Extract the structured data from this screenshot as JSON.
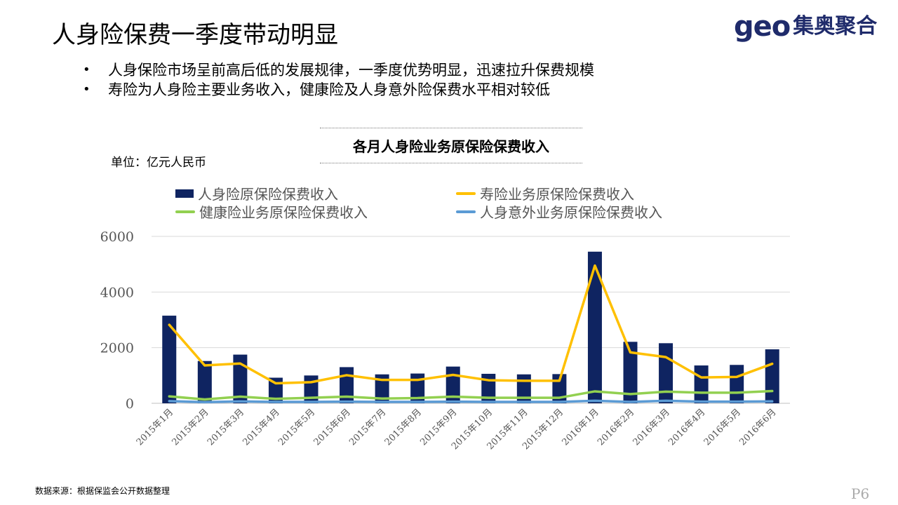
{
  "header": {
    "title": "人身险保费一季度带动明显",
    "logo_mark": "geo",
    "logo_text": "集奥聚合"
  },
  "bullets": [
    "人身保险市场呈前高后低的发展规律，一季度优势明显，迅速拉升保费规模",
    "寿险为人身险主要业务收入，健康险及人身意外险保费水平相对较低"
  ],
  "unit_label": "单位：亿元人民币",
  "footer": {
    "source": "数据来源：根据保监会公开数据整理",
    "page": "P6"
  },
  "chart_data": {
    "type": "bar",
    "title": "各月人身险业务原保险保费收入",
    "categories": [
      "2015年1月",
      "2015年2月",
      "2015年3月",
      "2015年4月",
      "2015年5月",
      "2015年6月",
      "2015年7月",
      "2015年8月",
      "2015年9月",
      "2015年10月",
      "2015年11月",
      "2015年12月",
      "2016年1月",
      "2016年2月",
      "2016年3月",
      "2016年4月",
      "2016年5月",
      "2016年6月"
    ],
    "ylim": [
      0,
      6000
    ],
    "yticks": [
      0,
      2000,
      4000,
      6000
    ],
    "grid": true,
    "legend_position": "top",
    "series": [
      {
        "name": "人身险原保险保费收入",
        "kind": "bar",
        "color": "#0f2461",
        "values": [
          3150,
          1520,
          1750,
          920,
          1000,
          1300,
          1040,
          1070,
          1320,
          1060,
          1040,
          1050,
          5450,
          2210,
          2160,
          1360,
          1380,
          1940
        ]
      },
      {
        "name": "寿险业务原保险保费收入",
        "kind": "line",
        "color": "#ffc000",
        "values": [
          2820,
          1360,
          1430,
          720,
          760,
          1010,
          840,
          840,
          1020,
          830,
          810,
          810,
          4950,
          1830,
          1660,
          930,
          950,
          1420
        ]
      },
      {
        "name": "健康险业务原保险保费收入",
        "kind": "line",
        "color": "#92d050",
        "values": [
          250,
          140,
          240,
          160,
          200,
          240,
          170,
          190,
          240,
          200,
          200,
          200,
          430,
          330,
          420,
          380,
          380,
          440
        ]
      },
      {
        "name": "人身意外业务原保险保费收入",
        "kind": "line",
        "color": "#5b9bd5",
        "values": [
          80,
          40,
          70,
          50,
          50,
          60,
          50,
          50,
          60,
          50,
          50,
          50,
          90,
          50,
          90,
          60,
          60,
          70
        ]
      }
    ]
  }
}
